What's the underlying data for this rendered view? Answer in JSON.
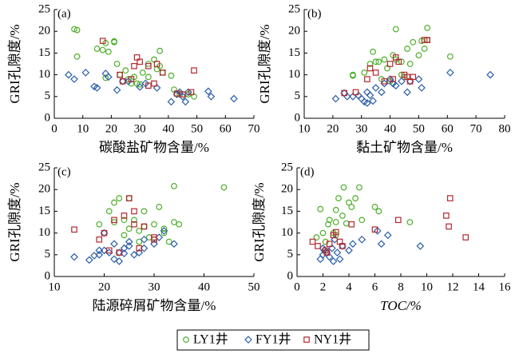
{
  "chart_data": [
    {
      "type": "scatter",
      "panel_label": "(a)",
      "xlabel": "碳酸盐矿物含量/%",
      "ylabel": "GRI孔隙度/%",
      "xlim": [
        0,
        70
      ],
      "xticks": [
        0,
        10,
        20,
        30,
        40,
        50,
        60,
        70
      ],
      "ylim": [
        0,
        25
      ],
      "yticks": [
        0,
        5,
        10,
        15,
        20,
        25
      ],
      "series": [
        {
          "name": "LY1井",
          "color": "#4daf2a",
          "marker": "circle",
          "x": [
            7,
            8,
            8,
            15,
            17,
            18,
            19,
            21,
            21,
            22,
            23,
            25,
            26,
            27,
            28,
            29,
            30,
            31,
            33,
            33,
            35,
            36,
            37,
            37,
            38,
            41,
            42,
            44,
            47,
            49,
            18
          ],
          "values": [
            20.5,
            20.3,
            14.2,
            16,
            15.7,
            17.3,
            15.3,
            17.5,
            17.7,
            12.5,
            10,
            11,
            9,
            8,
            9.5,
            8,
            7.8,
            10.5,
            9.5,
            12.5,
            13.5,
            11.3,
            15.5,
            12,
            10.5,
            9.8,
            6.6,
            5.5,
            5.5,
            5,
            9.3
          ]
        },
        {
          "name": "FY1井",
          "color": "#2c5ea8",
          "marker": "diamond",
          "x": [
            5,
            7,
            11,
            14,
            15,
            18,
            19,
            22,
            24,
            26,
            30,
            32,
            36,
            41,
            43,
            44,
            45,
            46,
            47,
            54,
            55,
            63
          ],
          "values": [
            10,
            9,
            10.5,
            7.3,
            7,
            10.3,
            9.5,
            6.5,
            8.5,
            8.5,
            7.2,
            8,
            7,
            3.8,
            5.5,
            6,
            5,
            3.8,
            6,
            6.2,
            5,
            4.5
          ]
        },
        {
          "name": "NY1井",
          "color": "#b5282e",
          "marker": "square",
          "x": [
            17,
            23,
            24,
            27,
            28,
            29,
            30,
            33,
            33,
            36,
            38,
            43,
            45,
            48,
            49,
            35
          ],
          "values": [
            17.8,
            10,
            8.5,
            9,
            12,
            14,
            13,
            7.5,
            12,
            12.5,
            10.5,
            5.7,
            5.5,
            6,
            11,
            8
          ]
        }
      ]
    },
    {
      "type": "scatter",
      "panel_label": "(b)",
      "xlabel": "黏土矿物含量/%",
      "ylabel": "GRI孔隙度/%",
      "xlim": [
        10,
        80
      ],
      "xticks": [
        10,
        20,
        30,
        40,
        50,
        60,
        70,
        80
      ],
      "ylim": [
        0,
        25
      ],
      "yticks": [
        0,
        5,
        10,
        15,
        20,
        25
      ],
      "series": [
        {
          "color": "#4daf2a",
          "marker": "circle",
          "x": [
            27,
            27,
            31,
            33,
            34,
            35,
            36,
            37,
            38,
            39,
            40,
            41,
            42,
            42,
            44,
            45,
            46,
            47,
            48,
            50,
            51,
            52,
            53,
            53,
            61,
            44
          ],
          "values": [
            10,
            9.8,
            10.5,
            12.5,
            15.3,
            13,
            13,
            9,
            13.5,
            11.5,
            8.5,
            14.5,
            13.5,
            20.5,
            13,
            9.5,
            16,
            12.5,
            17.5,
            14.5,
            17.8,
            16,
            20.8,
            18,
            14.2,
            10
          ]
        },
        {
          "color": "#2c5ea8",
          "marker": "diamond",
          "x": [
            21,
            24,
            25,
            27,
            29,
            30,
            31,
            32,
            32,
            33,
            34,
            35,
            37,
            38,
            40,
            41,
            42,
            44,
            46,
            47,
            50,
            51,
            61,
            75
          ],
          "values": [
            4.5,
            5.8,
            5,
            5,
            5.2,
            4.5,
            3.8,
            3.5,
            6,
            5.3,
            4,
            7,
            6,
            8,
            9,
            8,
            7.5,
            8.5,
            6,
            8.5,
            9,
            7,
            10.5,
            10
          ]
        },
        {
          "color": "#b5282e",
          "marker": "square",
          "x": [
            24,
            28,
            32,
            33,
            35,
            38,
            40,
            41,
            42,
            43,
            45,
            47,
            48,
            52,
            53,
            46
          ],
          "values": [
            5.8,
            6,
            9,
            11.5,
            10.5,
            8.5,
            12.5,
            9,
            14,
            13,
            10,
            8.5,
            9.5,
            18,
            18,
            9.5
          ]
        }
      ]
    },
    {
      "type": "scatter",
      "panel_label": "(c)",
      "xlabel": "陆源碎屑矿物含量/%",
      "ylabel": "GRI孔隙度/%",
      "xlim": [
        10,
        50
      ],
      "xticks": [
        10,
        20,
        30,
        40,
        50
      ],
      "ylim": [
        0,
        25
      ],
      "yticks": [
        0,
        5,
        10,
        15,
        20,
        25
      ],
      "series": [
        {
          "color": "#4daf2a",
          "marker": "circle",
          "x": [
            19,
            21,
            22,
            22,
            23,
            24,
            24,
            25,
            26,
            27,
            27,
            28,
            28,
            29,
            30,
            30,
            31,
            32,
            32,
            33,
            34,
            34,
            35,
            44,
            25
          ],
          "values": [
            12,
            15,
            17,
            12.5,
            18,
            13,
            9.5,
            11,
            13,
            10.5,
            8,
            11.5,
            15,
            9,
            8.5,
            12,
            16,
            11,
            10,
            8,
            20.8,
            12.5,
            12,
            20.5,
            18
          ]
        },
        {
          "color": "#2c5ea8",
          "marker": "diamond",
          "x": [
            14,
            17,
            18,
            19,
            19,
            20,
            20,
            21,
            22,
            22,
            23,
            24,
            24,
            25,
            25,
            26,
            27,
            28,
            28,
            30,
            31,
            32,
            34,
            23
          ],
          "values": [
            4.5,
            3.8,
            4.8,
            6,
            5,
            6,
            10,
            5.5,
            7.5,
            4,
            5.5,
            5.3,
            6.5,
            8,
            7,
            5,
            5.5,
            8.5,
            6.5,
            7.5,
            9,
            10.5,
            7.5,
            3.5
          ]
        },
        {
          "color": "#b5282e",
          "marker": "square",
          "x": [
            14,
            19,
            21,
            22,
            23,
            24,
            25,
            26,
            27,
            28,
            30,
            30,
            26,
            20
          ],
          "values": [
            10.8,
            8.5,
            6,
            13,
            5.5,
            14,
            18,
            12,
            6.5,
            11.5,
            8.5,
            9,
            15,
            10
          ]
        }
      ]
    },
    {
      "type": "scatter",
      "panel_label": "(d)",
      "xlabel": "TOC/%",
      "ylabel": "GRI孔隙度/%",
      "xlim": [
        0,
        16
      ],
      "xticks": [
        0,
        2,
        4,
        6,
        8,
        10,
        12,
        14,
        16
      ],
      "ylim": [
        0,
        25
      ],
      "yticks": [
        0,
        5,
        10,
        15,
        20,
        25
      ],
      "series": [
        {
          "color": "#4daf2a",
          "marker": "circle",
          "x": [
            1.5,
            1.8,
            2,
            2.2,
            2.4,
            2.5,
            2.8,
            3,
            3,
            3.2,
            3.5,
            3.6,
            3.8,
            4,
            4.2,
            4.5,
            4.8,
            5,
            6,
            6.3,
            8.7,
            3
          ],
          "values": [
            9,
            15.5,
            10,
            8,
            12,
            13,
            10,
            15.3,
            12.5,
            18,
            14,
            20.5,
            12.2,
            17,
            16,
            18,
            20.5,
            13,
            16,
            15,
            12.5,
            9.5
          ]
        },
        {
          "color": "#2c5ea8",
          "marker": "diamond",
          "x": [
            1.8,
            2,
            2.1,
            2.3,
            2.5,
            2.7,
            2.9,
            3.1,
            3.3,
            3.5,
            4,
            4.3,
            5,
            6.2,
            6.5,
            7,
            9.5,
            2,
            2.8
          ],
          "values": [
            4,
            5,
            6,
            5.5,
            4.5,
            6.5,
            8.5,
            5.5,
            4,
            7,
            6,
            7.5,
            8.5,
            10.5,
            7.5,
            9.5,
            7,
            6.5,
            3.5
          ]
        },
        {
          "color": "#b5282e",
          "marker": "square",
          "x": [
            1.2,
            1.6,
            2.2,
            2.3,
            2.5,
            2.8,
            3,
            3.3,
            3.5,
            4.2,
            6,
            7.8,
            11.5,
            11.7,
            11.8,
            13
          ],
          "values": [
            8,
            7,
            6,
            5.5,
            7.5,
            9.5,
            10.2,
            8,
            7,
            12,
            10.8,
            13,
            14,
            11.5,
            18,
            9
          ]
        }
      ]
    }
  ]
}
